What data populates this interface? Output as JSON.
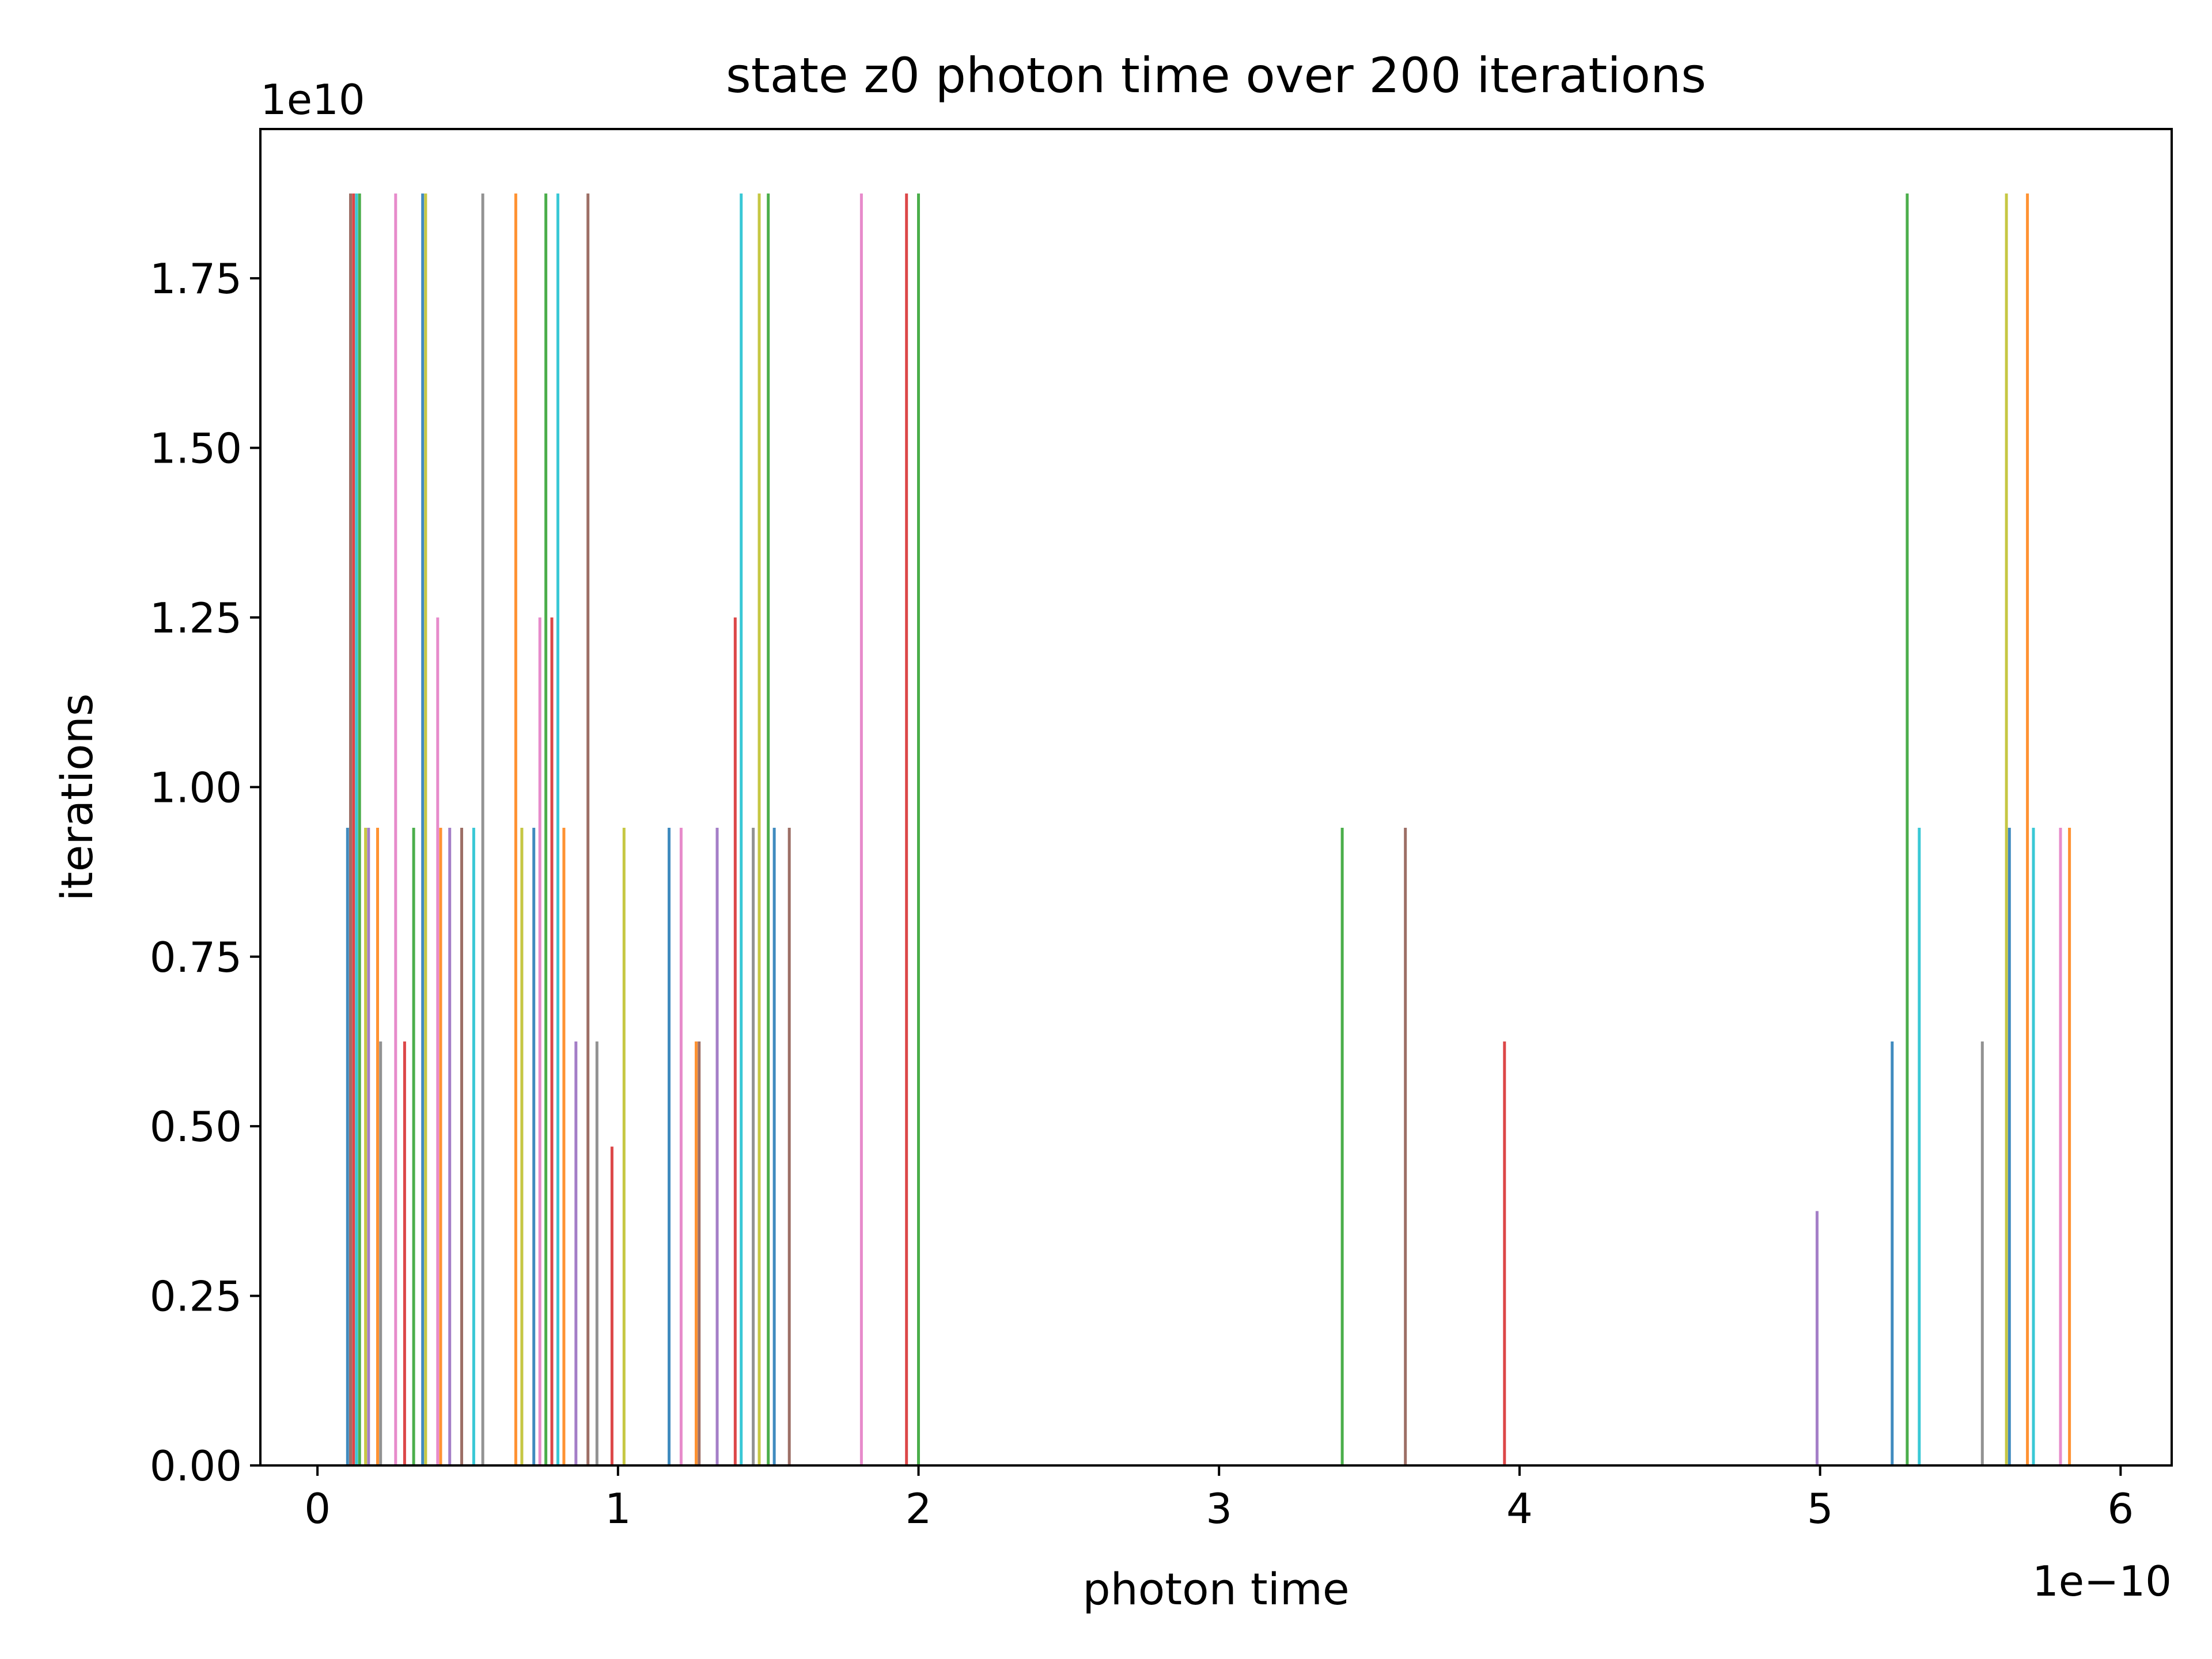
{
  "chart_data": {
    "type": "bar",
    "title": "state z0 photon time over 200 iterations",
    "xlabel": "photon time",
    "ylabel": "iterations",
    "x_scale_label": "1e−10",
    "y_scale_label": "1e10",
    "xlim": [
      -0.19,
      6.17
    ],
    "ylim": [
      0,
      1.97
    ],
    "x_ticks": [
      {
        "value": 0,
        "label": "0"
      },
      {
        "value": 1,
        "label": "1"
      },
      {
        "value": 2,
        "label": "2"
      },
      {
        "value": 3,
        "label": "3"
      },
      {
        "value": 4,
        "label": "4"
      },
      {
        "value": 5,
        "label": "5"
      },
      {
        "value": 6,
        "label": "6"
      }
    ],
    "y_ticks": [
      {
        "value": 0.0,
        "label": "0.00"
      },
      {
        "value": 0.25,
        "label": "0.25"
      },
      {
        "value": 0.5,
        "label": "0.50"
      },
      {
        "value": 0.75,
        "label": "0.75"
      },
      {
        "value": 1.0,
        "label": "1.00"
      },
      {
        "value": 1.25,
        "label": "1.25"
      },
      {
        "value": 1.5,
        "label": "1.50"
      },
      {
        "value": 1.75,
        "label": "1.75"
      }
    ],
    "grid": false,
    "legend": "none",
    "palette": [
      "#1f77b4",
      "#ff7f0e",
      "#2ca02c",
      "#d62728",
      "#9467bd",
      "#8c564b",
      "#e377c2",
      "#7f7f7f",
      "#bcbd22",
      "#17becf"
    ],
    "series": [
      {
        "values": [
          [
            0.1,
            0.94
          ],
          [
            0.35,
            1.875
          ],
          [
            0.72,
            0.94
          ],
          [
            1.17,
            0.94
          ],
          [
            1.52,
            0.94
          ],
          [
            5.24,
            0.625
          ],
          [
            5.63,
            0.94
          ]
        ]
      },
      {
        "values": [
          [
            0.2,
            0.94
          ],
          [
            0.41,
            0.94
          ],
          [
            0.66,
            1.875
          ],
          [
            0.82,
            0.94
          ],
          [
            1.26,
            0.625
          ],
          [
            5.69,
            1.875
          ],
          [
            5.83,
            0.94
          ]
        ]
      },
      {
        "values": [
          [
            0.14,
            1.875
          ],
          [
            0.32,
            0.94
          ],
          [
            0.76,
            1.875
          ],
          [
            1.5,
            1.875
          ],
          [
            2.0,
            1.875
          ],
          [
            3.41,
            0.94
          ],
          [
            5.29,
            1.875
          ]
        ]
      },
      {
        "values": [
          [
            0.12,
            1.875
          ],
          [
            0.29,
            0.625
          ],
          [
            0.78,
            1.25
          ],
          [
            0.98,
            0.47
          ],
          [
            1.39,
            1.25
          ],
          [
            1.96,
            1.875
          ],
          [
            3.95,
            0.625
          ]
        ]
      },
      {
        "values": [
          [
            0.17,
            0.94
          ],
          [
            0.44,
            0.94
          ],
          [
            0.86,
            0.625
          ],
          [
            1.33,
            0.94
          ],
          [
            4.99,
            0.375
          ]
        ]
      },
      {
        "values": [
          [
            0.11,
            1.875
          ],
          [
            0.48,
            0.94
          ],
          [
            0.9,
            1.875
          ],
          [
            1.27,
            0.625
          ],
          [
            1.57,
            0.94
          ],
          [
            3.62,
            0.94
          ]
        ]
      },
      {
        "values": [
          [
            0.26,
            1.875
          ],
          [
            0.4,
            1.25
          ],
          [
            0.74,
            1.25
          ],
          [
            1.21,
            0.94
          ],
          [
            1.81,
            1.875
          ],
          [
            5.8,
            0.94
          ]
        ]
      },
      {
        "values": [
          [
            0.21,
            0.625
          ],
          [
            0.55,
            1.875
          ],
          [
            0.93,
            0.625
          ],
          [
            1.45,
            0.94
          ],
          [
            5.54,
            0.625
          ]
        ]
      },
      {
        "values": [
          [
            0.16,
            0.94
          ],
          [
            0.36,
            1.875
          ],
          [
            0.68,
            0.94
          ],
          [
            1.02,
            0.94
          ],
          [
            1.47,
            1.875
          ],
          [
            5.62,
            1.875
          ]
        ]
      },
      {
        "values": [
          [
            0.13,
            1.875
          ],
          [
            0.52,
            0.94
          ],
          [
            0.8,
            1.875
          ],
          [
            1.41,
            1.875
          ],
          [
            5.33,
            0.94
          ],
          [
            5.71,
            0.94
          ]
        ]
      }
    ]
  }
}
